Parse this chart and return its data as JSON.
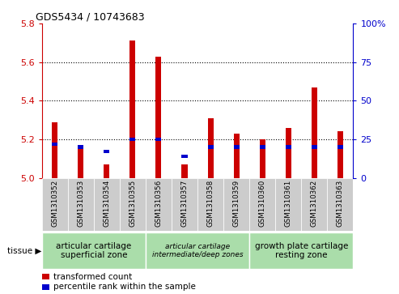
{
  "title": "GDS5434 / 10743683",
  "samples": [
    "GSM1310352",
    "GSM1310353",
    "GSM1310354",
    "GSM1310355",
    "GSM1310356",
    "GSM1310357",
    "GSM1310358",
    "GSM1310359",
    "GSM1310360",
    "GSM1310361",
    "GSM1310362",
    "GSM1310363"
  ],
  "red_values": [
    5.29,
    5.15,
    5.07,
    5.71,
    5.63,
    5.07,
    5.31,
    5.23,
    5.2,
    5.26,
    5.47,
    5.24
  ],
  "blue_values_pct": [
    22,
    20,
    17,
    25,
    25,
    14,
    20,
    20,
    20,
    20,
    20,
    20
  ],
  "ylim_left": [
    5.0,
    5.8
  ],
  "ylim_right": [
    0,
    100
  ],
  "yticks_left": [
    5.0,
    5.2,
    5.4,
    5.6,
    5.8
  ],
  "yticks_right": [
    0,
    25,
    50,
    75,
    100
  ],
  "red_color": "#cc0000",
  "blue_color": "#0000cc",
  "tissue_groups": [
    {
      "label": "articular cartilage\nsuperficial zone",
      "start": 0,
      "end": 3,
      "font_style": "normal",
      "font_size": 7.5
    },
    {
      "label": "articular cartilage\nintermediate/deep zones",
      "start": 4,
      "end": 7,
      "font_style": "italic",
      "font_size": 6.5
    },
    {
      "label": "growth plate cartilage\nresting zone",
      "start": 8,
      "end": 11,
      "font_style": "normal",
      "font_size": 7.5
    }
  ],
  "group_color": "#aaddaa",
  "col_bg_color": "#cccccc",
  "legend_red": "transformed count",
  "legend_blue": "percentile rank within the sample",
  "tissue_label": "tissue",
  "base_value": 5.0,
  "bar_width": 0.22
}
